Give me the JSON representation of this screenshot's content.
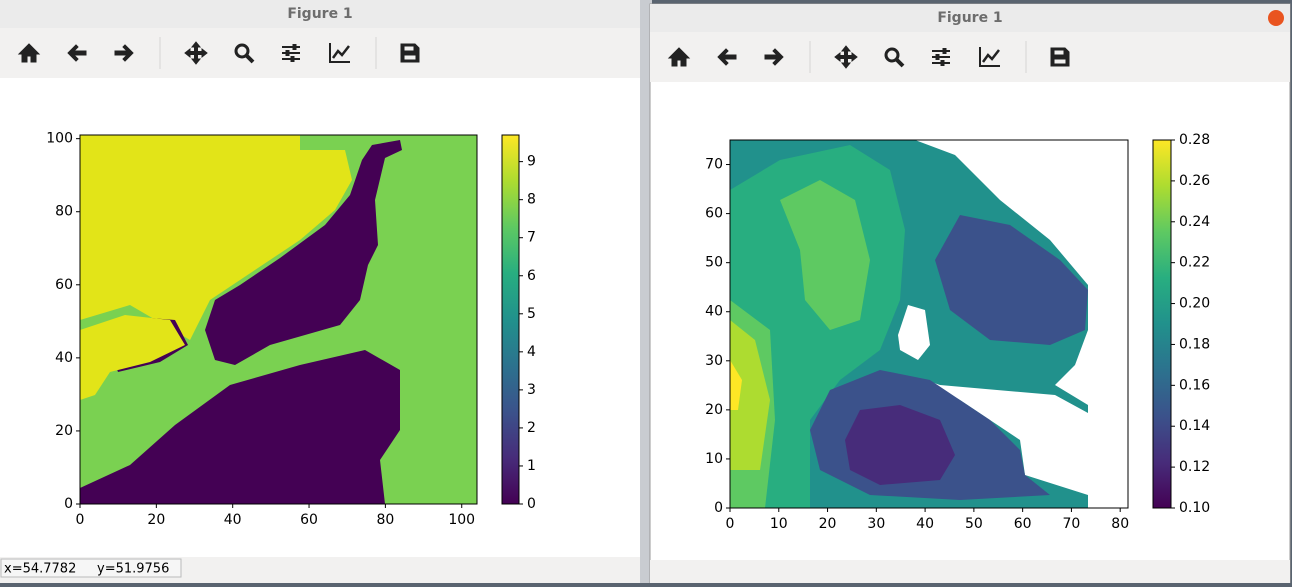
{
  "windows": [
    {
      "title": "Figure 1",
      "status": "x=54.7782     y=51.9756",
      "plot": {
        "xlim": [
          0,
          104
        ],
        "ylim": [
          0,
          101
        ],
        "xticks": [
          0,
          20,
          40,
          60,
          80,
          100
        ],
        "yticks": [
          0,
          20,
          40,
          60,
          80,
          100
        ],
        "colorbar_lim": [
          0,
          9.7
        ],
        "colorbar_ticks": [
          0,
          1,
          2,
          3,
          4,
          5,
          6,
          7,
          8,
          9
        ]
      }
    },
    {
      "title": "Figure 1",
      "plot": {
        "xlim": [
          0,
          81.6
        ],
        "ylim": [
          0,
          75
        ],
        "xticks": [
          0,
          10,
          20,
          30,
          40,
          50,
          60,
          70,
          80
        ],
        "yticks": [
          0,
          10,
          20,
          30,
          40,
          50,
          60,
          70
        ],
        "colorbar_lim": [
          0.1,
          0.28
        ],
        "colorbar_ticks": [
          {
            "value": 0.1,
            "label": "0.10"
          },
          0.12,
          0.14,
          0.16,
          0.18,
          {
            "value": 0.2,
            "label": "0.20"
          },
          0.22,
          0.24,
          0.26,
          0.28
        ]
      }
    }
  ]
}
